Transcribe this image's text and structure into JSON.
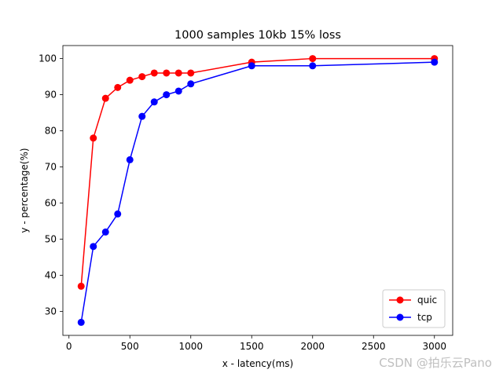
{
  "chart_data": {
    "type": "line",
    "title": "1000 samples 10kb 15% loss",
    "xlabel": "x - latency(ms)",
    "ylabel": "y - percentage(%)",
    "xlim": [
      -50,
      3150
    ],
    "ylim": [
      23.4,
      103.6
    ],
    "xticks": [
      0,
      500,
      1000,
      1500,
      2000,
      2500,
      3000
    ],
    "yticks": [
      30,
      40,
      50,
      60,
      70,
      80,
      90,
      100
    ],
    "x": [
      100,
      200,
      300,
      400,
      500,
      600,
      700,
      800,
      900,
      1000,
      1500,
      2000,
      3000
    ],
    "series": [
      {
        "name": "quic",
        "color": "#ff0000",
        "values": [
          37,
          78,
          89,
          92,
          94,
          95,
          96,
          96,
          96,
          96,
          99,
          100,
          100
        ]
      },
      {
        "name": "tcp",
        "color": "#0000ff",
        "values": [
          27,
          48,
          52,
          57,
          72,
          84,
          88,
          90,
          91,
          93,
          98,
          98,
          99
        ]
      }
    ],
    "legend_position": "lower-right",
    "grid": false
  },
  "watermark": "CSDN @拍乐云Pano"
}
